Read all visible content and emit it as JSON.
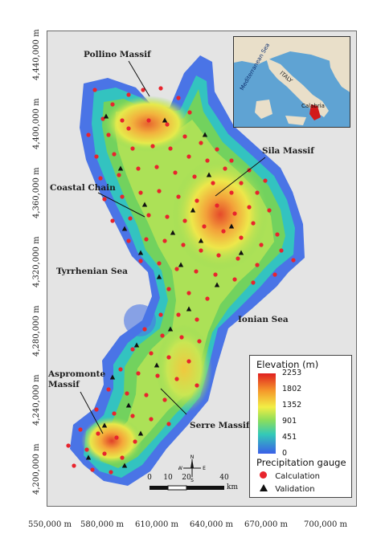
{
  "axis": {
    "y_labels": [
      "4,440,000 m",
      "4,400,000 m",
      "4,360,000 m",
      "4,320,000 m",
      "4,280,000 m",
      "4,240,000 m",
      "4,200,000 m"
    ],
    "x_labels": [
      "550,000 m",
      "580,000 m",
      "610,000 m",
      "640,000 m",
      "670,000 m",
      "700,000 m"
    ]
  },
  "labels": {
    "pollino": "Pollino Massif",
    "sila": "Sila Massif",
    "coastal": "Coastal Chain",
    "tyrrhenian": "Tyrrhenian Sea",
    "ionian": "Ionian Sea",
    "aspromonte": "Aspromonte Massif",
    "serre": "Serre Massif"
  },
  "inset": {
    "italy": "ITALY",
    "sea": "Mediterranean Sea",
    "calabria": "Calabria"
  },
  "legend": {
    "elevation_title": "Elevation (m)",
    "ticks": [
      "2253",
      "1802",
      "1352",
      "901",
      "451",
      "0"
    ],
    "gauge_title": "Precipitation gauge",
    "calculation": "Calculation",
    "validation": "Validation",
    "colors": {
      "calculation": "#e8242d",
      "validation": "#111111"
    }
  },
  "scalebar": {
    "ticks": [
      "0",
      "10",
      "20",
      "40"
    ],
    "unit": "km"
  },
  "compass": {
    "n": "N",
    "s": "S",
    "e": "E",
    "w": "W"
  }
}
